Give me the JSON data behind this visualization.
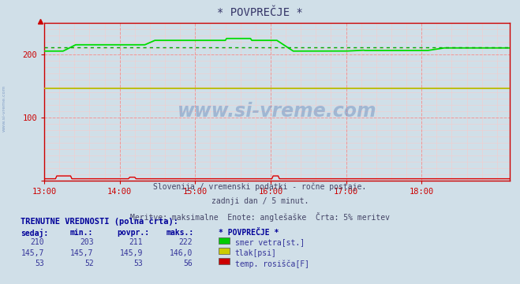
{
  "title": "* POVPREČJE *",
  "bg_color": "#d0dfe8",
  "plot_bg_color": "#d0dfe8",
  "ylim": [
    0,
    250
  ],
  "xlim_min": 0,
  "xlim_max": 370,
  "xtick_labels": [
    "13:00",
    "14:00",
    "15:00",
    "16:00",
    "17:00",
    "18:00"
  ],
  "xtick_positions": [
    0,
    60,
    120,
    180,
    240,
    300
  ],
  "ytick_positions": [
    0,
    100,
    200
  ],
  "ytick_labels": [
    "",
    "100",
    "200"
  ],
  "line1_color": "#00dd00",
  "line1_avg_color": "#00aa00",
  "line2_color": "#bbbb00",
  "line3_color": "#dd0000",
  "grid_major_color": "#ee9999",
  "grid_minor_color": "#f5cccc",
  "axis_color": "#cc0000",
  "watermark": "www.si-vreme.com",
  "subtitle1": "Slovenija / vremenski podatki - ročne postaje.",
  "subtitle2": "zadnji dan / 5 minut.",
  "subtitle3": "Meritve: maksimalne  Enote: anglešaške  Črta: 5% meritev",
  "table_header": "TRENUTNE VREDNOSTI (polna črta):",
  "col_headers": [
    "sedaj:",
    "min.:",
    "povpr.:",
    "maks.:",
    "* POVPREČJE *"
  ],
  "rows": [
    [
      "210",
      "203",
      "211",
      "222",
      "smer vetra[st.]",
      "#00cc00"
    ],
    [
      "145,7",
      "145,7",
      "145,9",
      "146,0",
      "tlak[psi]",
      "#cccc00"
    ],
    [
      "53",
      "52",
      "53",
      "56",
      "temp. rosišča[F]",
      "#cc0000"
    ]
  ]
}
